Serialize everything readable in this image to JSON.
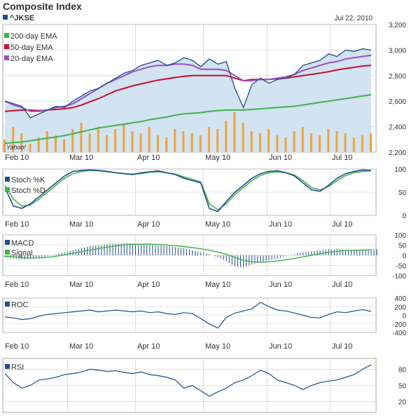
{
  "header": {
    "title": "Composite Index",
    "ticker": "^JKSE",
    "date": "Jul 22, 2010",
    "watermark": "Yahoo!"
  },
  "colors": {
    "price": "#1f4e8c",
    "price_fill": "#d2e3f1",
    "ema200": "#3fb34a",
    "ema50": "#c8102e",
    "ema20": "#9b4fc6",
    "volume": "#f0a33c",
    "stochK": "#1f4e8c",
    "stochD": "#3fb34a",
    "macd_bars": "#1f4e8c",
    "signal": "#3fb34a",
    "roc": "#1f4e8c",
    "rsi": "#1f4e8c",
    "grid": "#cccccc"
  },
  "x_axis": {
    "months": [
      "Feb 10",
      "Mar 10",
      "Apr 10",
      "May 10",
      "Jun 10",
      "Jul 10"
    ]
  },
  "chart_data": [
    {
      "type": "line",
      "panel": "price",
      "title": "Composite Index",
      "ylim": [
        2200,
        3200
      ],
      "yticks": [
        2200,
        2400,
        2600,
        2800,
        3000,
        3200
      ],
      "ytick_labels": [
        "2,200",
        "2,400",
        "2,600",
        "2,800",
        "3,000",
        "3,200"
      ],
      "legend": [
        "200-day EMA",
        "50-day EMA",
        "20-day EMA"
      ],
      "series": [
        {
          "name": "^JKSE",
          "values": [
            2600,
            2580,
            2560,
            2470,
            2500,
            2530,
            2560,
            2550,
            2600,
            2640,
            2680,
            2700,
            2740,
            2780,
            2820,
            2840,
            2880,
            2900,
            2920,
            2880,
            2900,
            2940,
            2920,
            2870,
            2930,
            2890,
            2910,
            2700,
            2550,
            2730,
            2780,
            2740,
            2770,
            2780,
            2810,
            2880,
            2900,
            2920,
            2970,
            2950,
            3000,
            2990,
            3010,
            3000
          ]
        },
        {
          "name": "200-day EMA",
          "values": [
            2270,
            2275,
            2280,
            2290,
            2300,
            2310,
            2320,
            2330,
            2345,
            2360,
            2375,
            2390,
            2400,
            2410,
            2420,
            2430,
            2440,
            2455,
            2465,
            2475,
            2490,
            2500,
            2505,
            2510,
            2520,
            2525,
            2530,
            2530,
            2530,
            2535,
            2540,
            2545,
            2550,
            2555,
            2560,
            2570,
            2580,
            2590,
            2600,
            2610,
            2620,
            2630,
            2640,
            2650
          ]
        },
        {
          "name": "50-day EMA",
          "values": [
            2520,
            2525,
            2530,
            2530,
            2525,
            2530,
            2535,
            2540,
            2550,
            2570,
            2595,
            2620,
            2650,
            2680,
            2700,
            2720,
            2735,
            2750,
            2765,
            2775,
            2785,
            2795,
            2800,
            2800,
            2800,
            2800,
            2800,
            2780,
            2760,
            2770,
            2770,
            2770,
            2775,
            2780,
            2790,
            2800,
            2810,
            2820,
            2830,
            2845,
            2855,
            2865,
            2875,
            2880
          ]
        },
        {
          "name": "20-day EMA",
          "values": [
            2600,
            2570,
            2550,
            2520,
            2520,
            2530,
            2550,
            2560,
            2580,
            2620,
            2660,
            2700,
            2740,
            2770,
            2800,
            2830,
            2850,
            2870,
            2880,
            2880,
            2890,
            2890,
            2880,
            2850,
            2850,
            2850,
            2840,
            2800,
            2760,
            2760,
            2770,
            2770,
            2780,
            2790,
            2810,
            2840,
            2860,
            2880,
            2900,
            2910,
            2930,
            2940,
            2950,
            2960
          ]
        }
      ],
      "volume_values": [
        0.3,
        0.6,
        0.45,
        0.2,
        0.35,
        0.5,
        0.4,
        0.3,
        0.55,
        0.7,
        0.45,
        0.6,
        0.4,
        0.55,
        0.65,
        0.5,
        0.45,
        0.6,
        0.4,
        0.35,
        0.55,
        0.5,
        0.45,
        0.4,
        0.6,
        0.55,
        0.75,
        0.95,
        0.7,
        0.5,
        0.45,
        0.55,
        0.4,
        0.35,
        0.5,
        0.6,
        0.45,
        0.4,
        0.55,
        0.5,
        0.45,
        0.35,
        0.4,
        0.45
      ]
    },
    {
      "type": "line",
      "panel": "stochastic",
      "ylim": [
        0,
        100
      ],
      "yticks": [
        0,
        50,
        100
      ],
      "legend": [
        "Stoch %K",
        "Stoch %D"
      ],
      "series": [
        {
          "name": "Stoch %K",
          "values": [
            60,
            20,
            15,
            25,
            40,
            55,
            70,
            85,
            95,
            97,
            98,
            97,
            95,
            92,
            90,
            88,
            92,
            94,
            96,
            92,
            88,
            80,
            75,
            70,
            15,
            8,
            30,
            50,
            65,
            80,
            90,
            95,
            96,
            92,
            85,
            70,
            55,
            52,
            65,
            80,
            90,
            95,
            98,
            97
          ]
        },
        {
          "name": "Stoch %D",
          "values": [
            65,
            35,
            20,
            22,
            35,
            50,
            65,
            80,
            90,
            95,
            97,
            96,
            94,
            92,
            90,
            89,
            90,
            93,
            94,
            92,
            89,
            83,
            78,
            72,
            25,
            12,
            25,
            45,
            60,
            75,
            86,
            92,
            94,
            92,
            87,
            75,
            60,
            55,
            62,
            75,
            86,
            92,
            95,
            96
          ]
        }
      ]
    },
    {
      "type": "bar",
      "panel": "macd",
      "ylim": [
        -100,
        100
      ],
      "yticks": [
        -100,
        -50,
        0,
        50,
        100
      ],
      "legend": [
        "MACD",
        "Signal"
      ],
      "series": [
        {
          "name": "MACD",
          "values": [
            -10,
            -15,
            -20,
            -18,
            -12,
            -5,
            5,
            15,
            25,
            35,
            45,
            50,
            55,
            58,
            60,
            58,
            55,
            52,
            48,
            45,
            40,
            35,
            25,
            15,
            5,
            -10,
            -30,
            -55,
            -60,
            -45,
            -35,
            -25,
            -15,
            -5,
            5,
            15,
            20,
            25,
            30,
            30,
            28,
            25,
            28,
            30
          ]
        },
        {
          "name": "Signal",
          "values": [
            -5,
            -8,
            -12,
            -14,
            -13,
            -10,
            -5,
            2,
            10,
            18,
            26,
            33,
            40,
            46,
            51,
            54,
            55,
            55,
            53,
            50,
            47,
            43,
            38,
            32,
            25,
            15,
            5,
            -10,
            -25,
            -32,
            -34,
            -32,
            -28,
            -22,
            -15,
            -8,
            0,
            8,
            15,
            20,
            24,
            25,
            26,
            27
          ]
        }
      ]
    },
    {
      "type": "line",
      "panel": "roc",
      "ylim": [
        -400,
        400
      ],
      "yticks": [
        -400,
        -200,
        0,
        200,
        400
      ],
      "legend": [
        "ROC"
      ],
      "series": [
        {
          "name": "ROC",
          "values": [
            -40,
            -60,
            -100,
            -80,
            -20,
            20,
            40,
            60,
            80,
            100,
            120,
            80,
            100,
            120,
            100,
            80,
            100,
            60,
            80,
            40,
            20,
            60,
            40,
            -80,
            -200,
            -300,
            -50,
            50,
            100,
            150,
            300,
            200,
            120,
            100,
            50,
            0,
            -50,
            -60,
            20,
            80,
            60,
            100,
            130,
            90
          ]
        }
      ]
    },
    {
      "type": "line",
      "panel": "rsi",
      "ylim": [
        0,
        100
      ],
      "yticks": [
        20,
        50,
        80
      ],
      "legend": [
        "RSI"
      ],
      "series": [
        {
          "name": "RSI",
          "values": [
            72,
            55,
            45,
            50,
            60,
            62,
            65,
            70,
            72,
            75,
            80,
            78,
            76,
            77,
            74,
            72,
            75,
            70,
            68,
            65,
            60,
            45,
            50,
            40,
            30,
            38,
            45,
            55,
            60,
            68,
            78,
            72,
            60,
            55,
            50,
            42,
            50,
            55,
            58,
            60,
            65,
            70,
            80,
            88
          ]
        }
      ]
    }
  ]
}
